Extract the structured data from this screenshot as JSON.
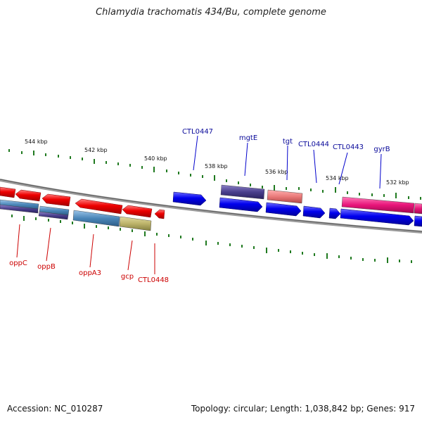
{
  "title": "Chlamydia trachomatis 434/Bu, complete genome",
  "footer": {
    "accession": "Accession: NC_010287",
    "topology": "Topology: circular; Length: 1,038,842 bp; Genes: 917"
  },
  "scale_labels": [
    "544 kbp",
    "542 kbp",
    "540 kbp",
    "538 kbp",
    "536 kbp",
    "534 kbp",
    "532 kbp"
  ],
  "genes_forward": [
    "CTL0447",
    "mgtE",
    "tgt",
    "CTL0444",
    "CTL0443",
    "gyrB"
  ],
  "genes_reverse": [
    "oppC",
    "oppB",
    "oppA3",
    "gcp",
    "CTL0448"
  ],
  "colors": {
    "reverse_strand": "#ee0000",
    "forward_strand": "#0000ee",
    "cog_purple": "#4a3f8c",
    "cog_steelblue": "#4a86b8",
    "cog_khaki": "#bcb36a",
    "cog_salmon": "#ea7a7a",
    "cog_pink": "#e8157a",
    "backbone": "#808080",
    "tick": "#207a20"
  }
}
